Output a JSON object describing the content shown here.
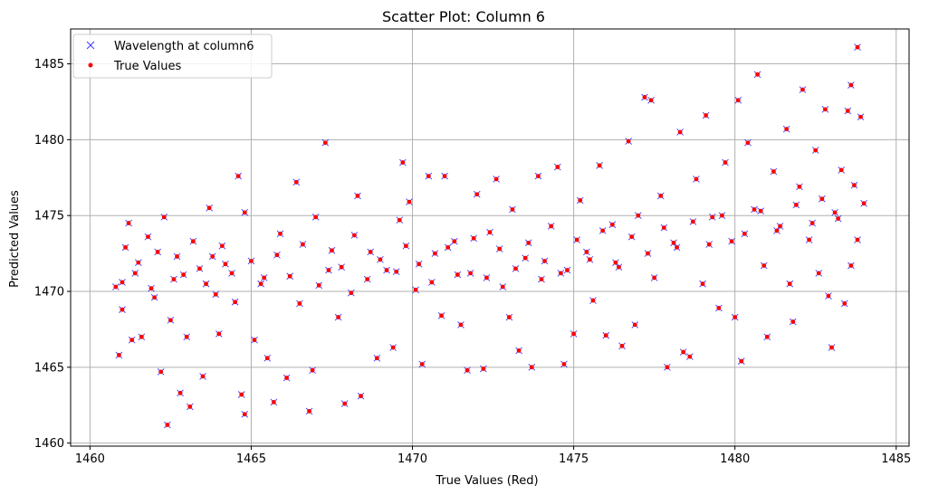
{
  "chart_data": {
    "type": "scatter",
    "title": "Scatter Plot: Column 6",
    "xlabel": "True Values (Red)",
    "ylabel": "Predicted Values",
    "xlim": [
      1459.4,
      1485.4
    ],
    "ylim": [
      1459.8,
      1487.3
    ],
    "xticks": [
      1460,
      1465,
      1470,
      1475,
      1480,
      1485
    ],
    "yticks": [
      1460,
      1465,
      1470,
      1475,
      1480,
      1485
    ],
    "grid": true,
    "legend_position": "top-left",
    "series": [
      {
        "name": "Wavelength at column6",
        "marker": "x",
        "color": "#3b3bff"
      },
      {
        "name": "True Values",
        "marker": "o",
        "color": "#ff0000"
      }
    ],
    "points": [
      [
        1460.9,
        1465.8
      ],
      [
        1461.0,
        1468.8
      ],
      [
        1461.1,
        1472.9
      ],
      [
        1461.2,
        1474.5
      ],
      [
        1461.0,
        1470.6
      ],
      [
        1460.8,
        1470.3
      ],
      [
        1461.3,
        1466.8
      ],
      [
        1461.6,
        1467.0
      ],
      [
        1461.4,
        1471.2
      ],
      [
        1461.8,
        1473.6
      ],
      [
        1462.0,
        1469.6
      ],
      [
        1462.2,
        1464.7
      ],
      [
        1462.4,
        1461.2
      ],
      [
        1462.5,
        1468.1
      ],
      [
        1462.3,
        1474.9
      ],
      [
        1462.7,
        1472.3
      ],
      [
        1462.8,
        1463.3
      ],
      [
        1463.1,
        1462.4
      ],
      [
        1463.0,
        1467.0
      ],
      [
        1463.4,
        1471.5
      ],
      [
        1463.5,
        1464.4
      ],
      [
        1463.7,
        1475.5
      ],
      [
        1463.9,
        1469.8
      ],
      [
        1464.0,
        1467.2
      ],
      [
        1464.1,
        1473.0
      ],
      [
        1464.4,
        1471.2
      ],
      [
        1464.6,
        1477.6
      ],
      [
        1464.7,
        1463.2
      ],
      [
        1464.8,
        1461.9
      ],
      [
        1464.8,
        1475.2
      ],
      [
        1465.1,
        1466.8
      ],
      [
        1465.3,
        1470.5
      ],
      [
        1465.5,
        1465.6
      ],
      [
        1465.7,
        1462.7
      ],
      [
        1465.9,
        1473.8
      ],
      [
        1466.1,
        1464.3
      ],
      [
        1466.4,
        1477.2
      ],
      [
        1466.5,
        1469.2
      ],
      [
        1466.8,
        1462.1
      ],
      [
        1466.9,
        1464.8
      ],
      [
        1467.0,
        1474.9
      ],
      [
        1467.3,
        1479.8
      ],
      [
        1467.4,
        1471.4
      ],
      [
        1467.7,
        1468.3
      ],
      [
        1467.9,
        1462.6
      ],
      [
        1468.1,
        1469.9
      ],
      [
        1468.3,
        1476.3
      ],
      [
        1468.4,
        1463.1
      ],
      [
        1468.7,
        1472.6
      ],
      [
        1468.9,
        1465.6
      ],
      [
        1469.2,
        1471.4
      ],
      [
        1469.4,
        1466.3
      ],
      [
        1469.6,
        1474.7
      ],
      [
        1469.7,
        1478.5
      ],
      [
        1469.9,
        1475.9
      ],
      [
        1470.1,
        1470.1
      ],
      [
        1470.3,
        1465.2
      ],
      [
        1470.5,
        1477.6
      ],
      [
        1470.7,
        1472.5
      ],
      [
        1470.9,
        1468.4
      ],
      [
        1471.0,
        1477.6
      ],
      [
        1471.3,
        1473.3
      ],
      [
        1471.5,
        1467.8
      ],
      [
        1471.7,
        1464.8
      ],
      [
        1471.8,
        1471.2
      ],
      [
        1472.0,
        1476.4
      ],
      [
        1472.2,
        1464.9
      ],
      [
        1472.4,
        1473.9
      ],
      [
        1472.6,
        1477.4
      ],
      [
        1472.8,
        1470.3
      ],
      [
        1473.0,
        1468.3
      ],
      [
        1473.1,
        1475.4
      ],
      [
        1473.3,
        1466.1
      ],
      [
        1473.5,
        1472.2
      ],
      [
        1473.7,
        1465.0
      ],
      [
        1473.9,
        1477.6
      ],
      [
        1474.0,
        1470.8
      ],
      [
        1474.3,
        1474.3
      ],
      [
        1474.5,
        1478.2
      ],
      [
        1474.7,
        1465.2
      ],
      [
        1474.8,
        1471.4
      ],
      [
        1475.0,
        1467.2
      ],
      [
        1475.2,
        1476.0
      ],
      [
        1475.4,
        1472.6
      ],
      [
        1475.6,
        1469.4
      ],
      [
        1475.8,
        1478.3
      ],
      [
        1476.0,
        1467.1
      ],
      [
        1476.2,
        1474.4
      ],
      [
        1476.4,
        1471.6
      ],
      [
        1476.5,
        1466.4
      ],
      [
        1476.7,
        1479.9
      ],
      [
        1476.9,
        1467.8
      ],
      [
        1477.0,
        1475.0
      ],
      [
        1477.2,
        1482.8
      ],
      [
        1477.4,
        1482.6
      ],
      [
        1477.5,
        1470.9
      ],
      [
        1477.7,
        1476.3
      ],
      [
        1477.9,
        1465.0
      ],
      [
        1478.1,
        1473.2
      ],
      [
        1478.3,
        1480.5
      ],
      [
        1478.4,
        1466.0
      ],
      [
        1478.6,
        1465.7
      ],
      [
        1478.8,
        1477.4
      ],
      [
        1479.0,
        1470.5
      ],
      [
        1479.1,
        1481.6
      ],
      [
        1479.3,
        1474.9
      ],
      [
        1479.5,
        1468.9
      ],
      [
        1479.7,
        1478.5
      ],
      [
        1479.9,
        1473.3
      ],
      [
        1480.0,
        1468.3
      ],
      [
        1480.1,
        1482.6
      ],
      [
        1480.2,
        1465.4
      ],
      [
        1480.4,
        1479.8
      ],
      [
        1480.6,
        1475.4
      ],
      [
        1480.7,
        1484.3
      ],
      [
        1480.9,
        1471.7
      ],
      [
        1481.0,
        1467.0
      ],
      [
        1481.2,
        1477.9
      ],
      [
        1481.4,
        1474.3
      ],
      [
        1481.6,
        1480.7
      ],
      [
        1481.7,
        1470.5
      ],
      [
        1481.8,
        1468.0
      ],
      [
        1482.0,
        1476.9
      ],
      [
        1482.1,
        1483.3
      ],
      [
        1482.3,
        1473.4
      ],
      [
        1482.5,
        1479.3
      ],
      [
        1482.6,
        1471.2
      ],
      [
        1482.8,
        1482.0
      ],
      [
        1482.9,
        1469.7
      ],
      [
        1483.0,
        1466.3
      ],
      [
        1483.1,
        1475.2
      ],
      [
        1483.3,
        1478.0
      ],
      [
        1483.4,
        1469.2
      ],
      [
        1483.5,
        1481.9
      ],
      [
        1483.6,
        1483.6
      ],
      [
        1483.7,
        1477.0
      ],
      [
        1483.8,
        1486.1
      ],
      [
        1483.9,
        1481.5
      ],
      [
        1484.0,
        1475.8
      ],
      [
        1483.8,
        1473.4
      ],
      [
        1483.6,
        1471.7
      ],
      [
        1461.5,
        1471.9
      ],
      [
        1461.9,
        1470.2
      ],
      [
        1462.1,
        1472.6
      ],
      [
        1462.6,
        1470.8
      ],
      [
        1462.9,
        1471.1
      ],
      [
        1463.2,
        1473.3
      ],
      [
        1463.6,
        1470.5
      ],
      [
        1463.8,
        1472.3
      ],
      [
        1464.2,
        1471.8
      ],
      [
        1464.5,
        1469.3
      ],
      [
        1465.0,
        1472.0
      ],
      [
        1465.4,
        1470.9
      ],
      [
        1465.8,
        1472.4
      ],
      [
        1466.2,
        1471.0
      ],
      [
        1466.6,
        1473.1
      ],
      [
        1467.1,
        1470.4
      ],
      [
        1467.5,
        1472.7
      ],
      [
        1467.8,
        1471.6
      ],
      [
        1468.2,
        1473.7
      ],
      [
        1468.6,
        1470.8
      ],
      [
        1469.0,
        1472.1
      ],
      [
        1469.5,
        1471.3
      ],
      [
        1469.8,
        1473.0
      ],
      [
        1470.2,
        1471.8
      ],
      [
        1470.6,
        1470.6
      ],
      [
        1471.1,
        1472.9
      ],
      [
        1471.4,
        1471.1
      ],
      [
        1471.9,
        1473.5
      ],
      [
        1472.3,
        1470.9
      ],
      [
        1472.7,
        1472.8
      ],
      [
        1473.2,
        1471.5
      ],
      [
        1473.6,
        1473.2
      ],
      [
        1474.1,
        1472.0
      ],
      [
        1474.6,
        1471.2
      ],
      [
        1475.1,
        1473.4
      ],
      [
        1475.5,
        1472.1
      ],
      [
        1475.9,
        1474.0
      ],
      [
        1476.3,
        1471.9
      ],
      [
        1476.8,
        1473.6
      ],
      [
        1477.3,
        1472.5
      ],
      [
        1477.8,
        1474.2
      ],
      [
        1478.2,
        1472.9
      ],
      [
        1478.7,
        1474.6
      ],
      [
        1479.2,
        1473.1
      ],
      [
        1479.6,
        1475.0
      ],
      [
        1480.3,
        1473.8
      ],
      [
        1480.8,
        1475.3
      ],
      [
        1481.3,
        1474.0
      ],
      [
        1481.9,
        1475.7
      ],
      [
        1482.4,
        1474.5
      ],
      [
        1482.7,
        1476.1
      ],
      [
        1483.2,
        1474.8
      ]
    ]
  }
}
